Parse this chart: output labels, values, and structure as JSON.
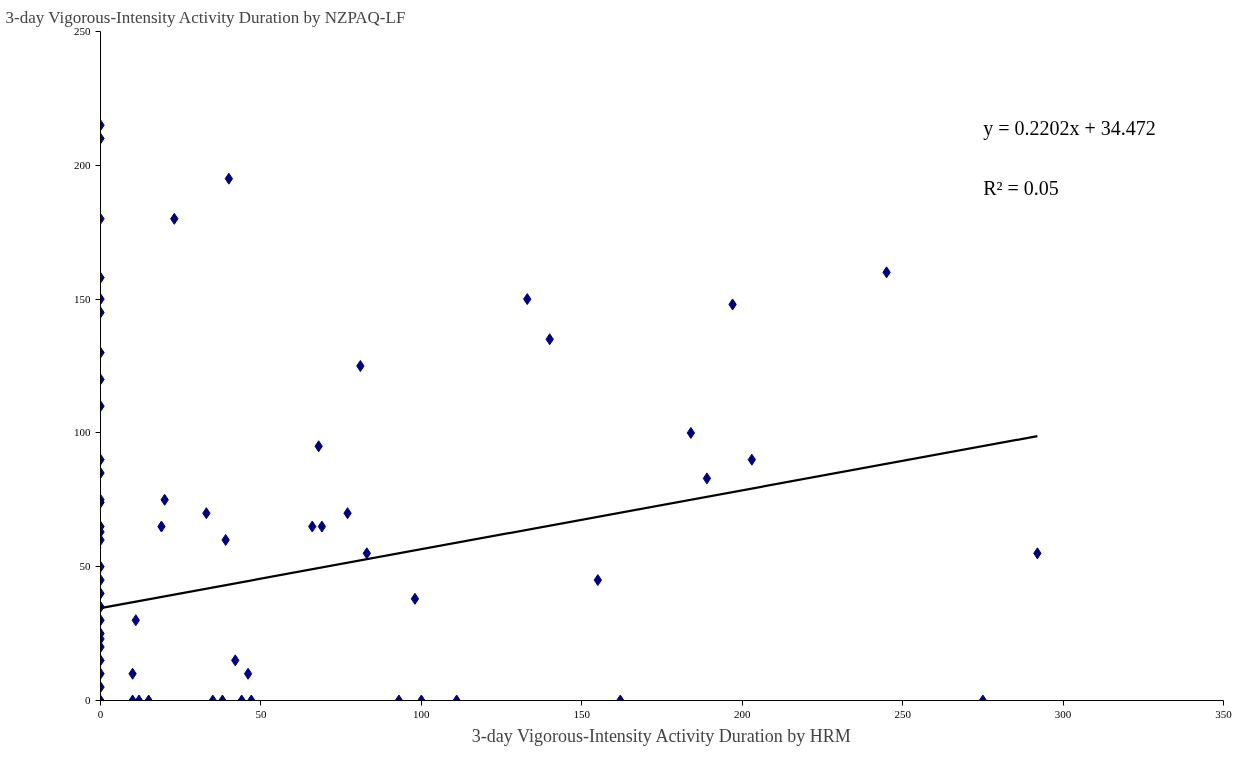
{
  "chart_data": {
    "type": "scatter",
    "ylabel": "3-day Vigorous-Intensity Activity Duration by NZPAQ-LF",
    "xlabel": "3-day Vigorous-Intensity Activity Duration by HRM",
    "annotations": [
      "y = 0.2202x + 34.472",
      "R² = 0.05"
    ],
    "xlim": [
      0,
      350
    ],
    "xticks": [
      0,
      50,
      100,
      150,
      200,
      250,
      300,
      350
    ],
    "ylim": [
      0,
      250
    ],
    "yticks": [
      0,
      50,
      100,
      150,
      200,
      250
    ],
    "grid": false,
    "series": [
      {
        "marker": "diamond",
        "color": "#000080",
        "x": [
          0,
          0,
          0,
          0,
          0,
          0,
          0,
          0,
          0,
          0,
          0,
          0,
          0,
          0,
          0,
          0,
          0,
          0,
          0,
          0,
          0,
          0,
          0,
          0,
          0,
          0,
          0,
          0,
          11,
          10,
          42,
          46,
          10,
          12,
          15,
          35,
          38,
          44,
          47,
          93,
          100,
          111,
          98,
          23,
          40,
          19,
          20,
          33,
          39,
          66,
          69,
          68,
          77,
          81,
          83,
          133,
          140,
          155,
          162,
          184,
          189,
          197,
          203,
          245,
          275,
          292
        ],
        "values": [
          215,
          210,
          180,
          158,
          150,
          145,
          130,
          120,
          110,
          90,
          85,
          75,
          74,
          65,
          63,
          60,
          50,
          45,
          40,
          35,
          30,
          25,
          23,
          20,
          15,
          10,
          5,
          0,
          30,
          10,
          15,
          10,
          0,
          0,
          0,
          0,
          0,
          0,
          0,
          0,
          0,
          0,
          38,
          180,
          195,
          65,
          75,
          70,
          60,
          65,
          65,
          95,
          70,
          125,
          55,
          150,
          135,
          45,
          0,
          100,
          83,
          148,
          90,
          160,
          0,
          55
        ]
      },
      {
        "type": "line",
        "marker": "none",
        "color": "#000000",
        "x": [
          0,
          292
        ],
        "values": [
          34.5,
          98.8
        ]
      }
    ]
  }
}
